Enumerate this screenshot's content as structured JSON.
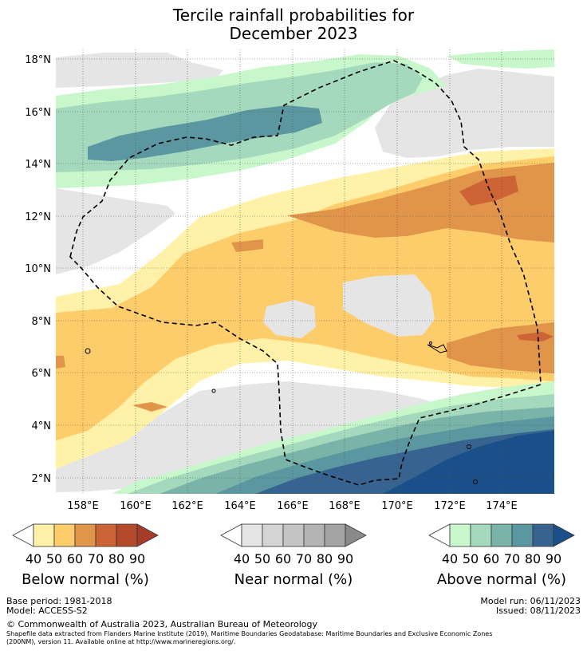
{
  "title": {
    "line1": "Tercile rainfall probabilities for",
    "line2": "December 2023"
  },
  "axes": {
    "lon_ticks": [
      "158°E",
      "160°E",
      "162°E",
      "164°E",
      "166°E",
      "168°E",
      "170°E",
      "172°E",
      "174°E"
    ],
    "lat_ticks": [
      "18°N",
      "16°N",
      "14°N",
      "12°N",
      "10°N",
      "8°N",
      "6°N",
      "4°N",
      "2°N"
    ]
  },
  "legends": [
    {
      "title": "Below normal (%)",
      "ticks": [
        "40",
        "50",
        "60",
        "70",
        "80",
        "90"
      ],
      "colors": [
        "#fff1a8",
        "#fdcc6b",
        "#e0954a",
        "#cd6436",
        "#b34a2b",
        "#a63c28"
      ]
    },
    {
      "title": "Near normal (%)",
      "ticks": [
        "40",
        "50",
        "60",
        "70",
        "80",
        "90"
      ],
      "colors": [
        "#e5e5e5",
        "#d4d4d4",
        "#c4c4c4",
        "#b4b4b4",
        "#a4a4a4",
        "#8a8a8a"
      ]
    },
    {
      "title": "Above normal (%)",
      "ticks": [
        "40",
        "50",
        "60",
        "70",
        "80",
        "90"
      ],
      "colors": [
        "#c8f7cb",
        "#a5d9bd",
        "#7ab3a8",
        "#5a97a0",
        "#36638f",
        "#1a4f8a"
      ]
    }
  ],
  "footer": {
    "base_period": "Base period: 1981-2018",
    "model": "Model: ACCESS-S2",
    "model_run": "Model run: 06/11/2023",
    "issued": "Issued: 08/11/2023",
    "copyright": "© Commonwealth of Australia 2023, Australian Bureau of Meteorology",
    "shapefile_line1": "Shapefile data extracted from Flanders Marine Institute (2019), Maritime Boundaries Geodatabase: Maritime Boundaries and Exclusive Economic Zones",
    "shapefile_line2": "(200NM), version 11. Available online at http://www.marineregions.org/."
  }
}
